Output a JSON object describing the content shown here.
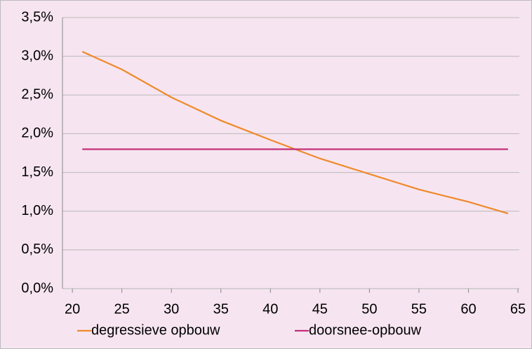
{
  "chart_data": {
    "type": "line",
    "x": [
      21,
      25,
      30,
      35,
      40,
      45,
      50,
      55,
      60,
      64
    ],
    "series": [
      {
        "name": "degressieve opbouw",
        "color": "#f0892b",
        "values": [
          3.06,
          2.83,
          2.47,
          2.17,
          1.92,
          1.68,
          1.48,
          1.28,
          1.12,
          0.97
        ]
      },
      {
        "name": "doorsnee-opbouw",
        "color": "#c2307a",
        "values": [
          1.8,
          1.8,
          1.8,
          1.8,
          1.8,
          1.8,
          1.8,
          1.8,
          1.8,
          1.8
        ]
      }
    ],
    "xlim": [
      19,
      65
    ],
    "xticks": [
      20,
      25,
      30,
      35,
      40,
      45,
      50,
      55,
      60,
      65
    ],
    "ylim": [
      0,
      3.5
    ],
    "yticks": [
      {
        "value": 0,
        "label": "0,0%"
      },
      {
        "value": 0.5,
        "label": "0,5%"
      },
      {
        "value": 1,
        "label": "1,0%"
      },
      {
        "value": 1.5,
        "label": "1,5%"
      },
      {
        "value": 2,
        "label": "2,0%"
      },
      {
        "value": 2.5,
        "label": "2,5%"
      },
      {
        "value": 3,
        "label": "3,0%"
      },
      {
        "value": 3.5,
        "label": "3,5%"
      }
    ],
    "grid": true,
    "legend": "bottom"
  }
}
